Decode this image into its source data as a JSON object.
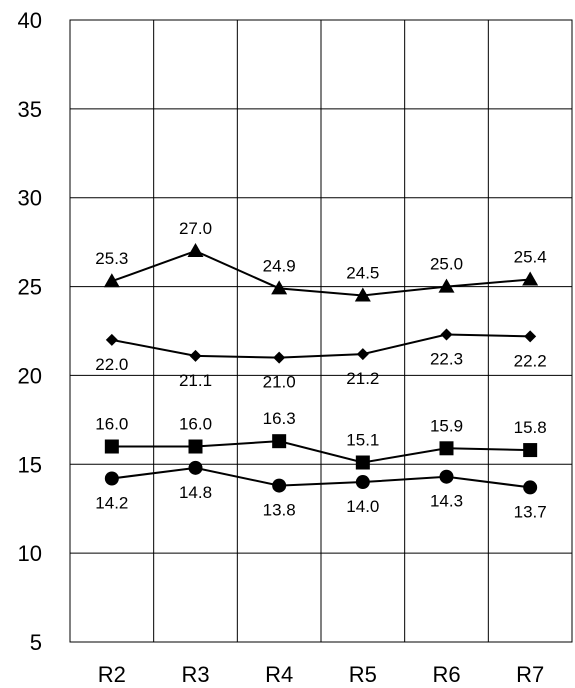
{
  "chart_data": {
    "type": "line",
    "categories": [
      "R2",
      "R3",
      "R4",
      "R5",
      "R6",
      "R7"
    ],
    "ylim": [
      5,
      40
    ],
    "yticks": [
      5,
      10,
      15,
      20,
      25,
      30,
      35,
      40
    ],
    "grid": true,
    "legend": "none",
    "series": [
      {
        "marker": "triangle",
        "values": [
          25.3,
          27.0,
          24.9,
          24.5,
          25.0,
          25.4
        ],
        "labels": [
          "25.3",
          "27.0",
          "24.9",
          "24.5",
          "25.0",
          "25.4"
        ],
        "label_position": "above"
      },
      {
        "marker": "diamond",
        "values": [
          22.0,
          21.1,
          21.0,
          21.2,
          22.3,
          22.2
        ],
        "labels": [
          "22.0",
          "21.1",
          "21.0",
          "21.2",
          "22.3",
          "22.2"
        ],
        "label_position": "below"
      },
      {
        "marker": "square",
        "values": [
          16.0,
          16.0,
          16.3,
          15.1,
          15.9,
          15.8
        ],
        "labels": [
          "16.0",
          "16.0",
          "16.3",
          "15.1",
          "15.9",
          "15.8"
        ],
        "label_position": "above"
      },
      {
        "marker": "circle",
        "values": [
          14.2,
          14.8,
          13.8,
          14.0,
          14.3,
          13.7
        ],
        "labels": [
          "14.2",
          "14.8",
          "13.8",
          "14.0",
          "14.3",
          "13.7"
        ],
        "label_position": "below"
      }
    ]
  }
}
